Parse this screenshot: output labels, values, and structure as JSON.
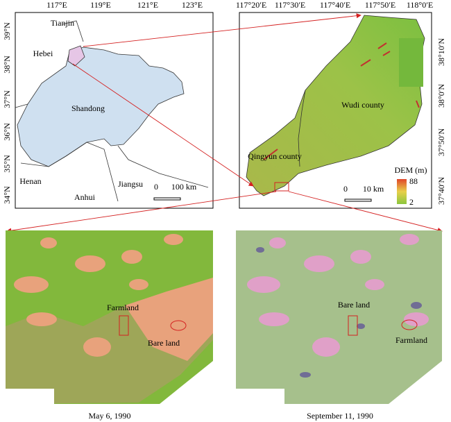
{
  "overview_map": {
    "lon_labels": [
      "117°E",
      "119°E",
      "121°E",
      "123°E"
    ],
    "lat_labels": [
      "39°N",
      "38°N",
      "37°N",
      "36°N",
      "35°N",
      "34°N"
    ],
    "places": [
      "Tianjin",
      "Hebei",
      "Shandong",
      "Henan",
      "Anhui",
      "Jiangsu"
    ],
    "scale_labels": [
      "0",
      "100 km"
    ]
  },
  "dem_map": {
    "lon_labels": [
      "117°20′E",
      "117°30′E",
      "117°40′E",
      "117°50′E",
      "118°0′E"
    ],
    "lat_labels": [
      "38°10′N",
      "38°0′N",
      "37°50′N",
      "37°40′N"
    ],
    "places": [
      "Wudi county",
      "Qingyun county"
    ],
    "legend_title": "DEM (m)",
    "legend_max": "88",
    "legend_min": "2",
    "scale_labels": [
      "0",
      "10 km"
    ]
  },
  "images": [
    {
      "labels": [
        "Farmland",
        "Bare land"
      ],
      "caption": "May 6, 1990"
    },
    {
      "labels": [
        "Bare land",
        "Farmland"
      ],
      "caption": "September 11, 1990"
    }
  ]
}
